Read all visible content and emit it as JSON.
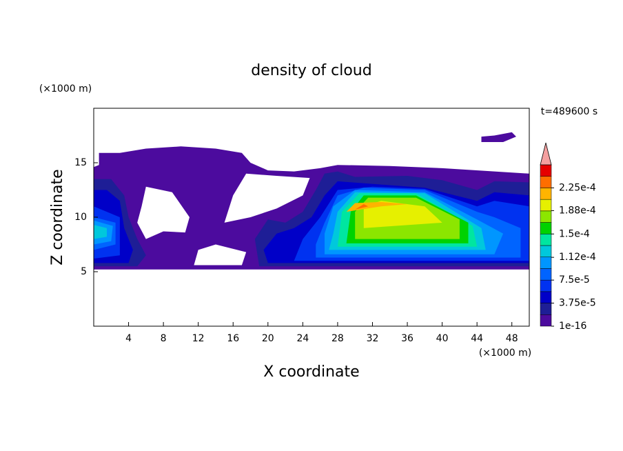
{
  "chart_data": {
    "type": "contour",
    "title": "density of cloud",
    "x_label": "X coordinate",
    "y_label": "Z coordinate",
    "x_unit": "(×1000 m)",
    "y_unit": "(×1000 m)",
    "time_label": "t=489600 s",
    "xlim": [
      0,
      50
    ],
    "ylim": [
      0,
      20
    ],
    "xticks": [
      4,
      8,
      12,
      16,
      20,
      24,
      28,
      32,
      36,
      40,
      44,
      48
    ],
    "yticks": [
      5,
      10,
      15
    ],
    "levels": [
      1e-16,
      1.875e-05,
      3.75e-05,
      5.625e-05,
      7.5e-05,
      9.375e-05,
      0.0001125,
      0.00013125,
      0.00015,
      0.00016875,
      0.0001875,
      0.00020625,
      0.000225,
      0.00024375,
      0.0002625
    ],
    "colors": [
      "#4c0b9e",
      "#1e1e96",
      "#0000c8",
      "#0032f0",
      "#0064ff",
      "#0096ff",
      "#00c8dc",
      "#00e6a0",
      "#00d200",
      "#8ce600",
      "#e6f000",
      "#ffb400",
      "#ff6e00",
      "#e60000"
    ],
    "extend_color": "#f4a0a0",
    "cbar_ticks": [
      1e-16,
      {
        "value": 3.75e-05,
        "label": "3.75e-5"
      },
      {
        "value": 7.5e-05,
        "label": "7.5e-5"
      },
      {
        "value": 0.000112,
        "label": "1.12e-4"
      },
      {
        "value": 0.00015,
        "label": "1.5e-4"
      },
      {
        "value": 0.000188,
        "label": "1.88e-4"
      },
      {
        "value": 0.000225,
        "label": "2.25e-4"
      }
    ],
    "regions": [
      {
        "value": 1e-16,
        "rings": [
          [
            [
              0,
              5.2
            ],
            [
              50,
              5.2
            ],
            [
              50,
              14
            ],
            [
              46,
              14.2
            ],
            [
              40,
              14.5
            ],
            [
              34,
              14.7
            ],
            [
              28,
              14.8
            ],
            [
              26,
              14.5
            ],
            [
              23,
              14.2
            ],
            [
              20,
              14.3
            ],
            [
              18,
              15
            ],
            [
              17,
              15.9
            ],
            [
              14,
              16.3
            ],
            [
              10,
              16.5
            ],
            [
              6,
              16.3
            ],
            [
              3,
              15.9
            ],
            [
              0.6,
              15.9
            ],
            [
              0.6,
              14.8
            ],
            [
              0,
              14.6
            ]
          ],
          [
            [
              6,
              8
            ],
            [
              8,
              8.7
            ],
            [
              10.5,
              8.6
            ],
            [
              11,
              10
            ],
            [
              9,
              12.3
            ],
            [
              6,
              12.8
            ],
            [
              5.5,
              11
            ],
            [
              5,
              9.5
            ]
          ],
          [
            [
              15,
              9.5
            ],
            [
              18,
              10
            ],
            [
              21,
              10.8
            ],
            [
              24,
              12
            ],
            [
              24.8,
              13.6
            ],
            [
              21,
              13.8
            ],
            [
              17.5,
              14
            ],
            [
              16,
              12
            ]
          ],
          [
            [
              11.5,
              5.6
            ],
            [
              17,
              5.6
            ],
            [
              17.5,
              6.8
            ],
            [
              14,
              7.5
            ],
            [
              12,
              7
            ]
          ]
        ]
      },
      {
        "value": 1e-16,
        "rings": [
          [
            [
              44.5,
              16.9
            ],
            [
              47,
              16.9
            ],
            [
              48.5,
              17.4
            ],
            [
              48,
              17.8
            ],
            [
              46,
              17.5
            ],
            [
              44.5,
              17.4
            ]
          ]
        ]
      },
      {
        "value": 1.875e-05,
        "rings": [
          [
            [
              0,
              5.5
            ],
            [
              5,
              5.5
            ],
            [
              6,
              6.5
            ],
            [
              5,
              8
            ],
            [
              4,
              10
            ],
            [
              3.5,
              12
            ],
            [
              2,
              13.5
            ],
            [
              0,
              13.5
            ]
          ]
        ]
      },
      {
        "value": 1.875e-05,
        "rings": [
          [
            [
              19,
              5.5
            ],
            [
              50,
              5.5
            ],
            [
              50,
              13.2
            ],
            [
              46,
              13.3
            ],
            [
              44,
              12.5
            ],
            [
              40,
              13.4
            ],
            [
              36,
              13.8
            ],
            [
              30,
              13.7
            ],
            [
              28,
              14.2
            ],
            [
              26.5,
              14
            ],
            [
              25.5,
              12.5
            ],
            [
              24,
              10.5
            ],
            [
              22,
              9.5
            ],
            [
              20,
              9.8
            ],
            [
              18.5,
              8
            ]
          ]
        ]
      },
      {
        "value": 3.75e-05,
        "rings": [
          [
            [
              0,
              5.8
            ],
            [
              4,
              5.8
            ],
            [
              4.5,
              7
            ],
            [
              3.5,
              9
            ],
            [
              3,
              11.5
            ],
            [
              1.5,
              12.5
            ],
            [
              0,
              12.5
            ]
          ]
        ]
      },
      {
        "value": 3.75e-05,
        "rings": [
          [
            [
              20,
              5.8
            ],
            [
              50,
              5.8
            ],
            [
              50,
              12
            ],
            [
              46,
              12.3
            ],
            [
              44,
              11.5
            ],
            [
              38,
              12.7
            ],
            [
              33,
              13
            ],
            [
              28,
              13.3
            ],
            [
              26.5,
              12
            ],
            [
              25,
              10
            ],
            [
              23,
              9
            ],
            [
              21,
              8.5
            ],
            [
              19.5,
              7
            ]
          ]
        ]
      },
      {
        "value": 5.625e-05,
        "rings": [
          [
            [
              0,
              6.2
            ],
            [
              3,
              6.5
            ],
            [
              3,
              10
            ],
            [
              0,
              11
            ]
          ]
        ]
      },
      {
        "value": 5.625e-05,
        "rings": [
          [
            [
              23,
              6
            ],
            [
              50,
              6
            ],
            [
              50,
              11
            ],
            [
              46,
              11.5
            ],
            [
              44,
              11
            ],
            [
              38,
              12.6
            ],
            [
              32,
              12.8
            ],
            [
              28,
              12.5
            ],
            [
              26,
              10
            ],
            [
              24,
              8
            ]
          ]
        ]
      },
      {
        "value": 7.5e-05,
        "rings": [
          [
            [
              0,
              7
            ],
            [
              2.5,
              7.5
            ],
            [
              2.5,
              9.5
            ],
            [
              0,
              10
            ]
          ]
        ]
      },
      {
        "value": 7.5e-05,
        "rings": [
          [
            [
              25.5,
              6.3
            ],
            [
              49,
              6.3
            ],
            [
              49,
              9
            ],
            [
              46,
              10
            ],
            [
              44,
              10.5
            ],
            [
              38,
              12.5
            ],
            [
              31,
              12.7
            ],
            [
              28,
              12
            ],
            [
              26.5,
              9.5
            ],
            [
              25.5,
              7.5
            ]
          ]
        ]
      },
      {
        "value": 9.375e-05,
        "rings": [
          [
            [
              0,
              7.5
            ],
            [
              2,
              7.8
            ],
            [
              2.2,
              9.2
            ],
            [
              0,
              9.7
            ]
          ]
        ]
      },
      {
        "value": 9.375e-05,
        "rings": [
          [
            [
              26.5,
              6.6
            ],
            [
              46,
              6.6
            ],
            [
              47,
              8.5
            ],
            [
              44,
              9.8
            ],
            [
              38,
              12.3
            ],
            [
              30,
              12.5
            ],
            [
              27.5,
              11
            ],
            [
              26.5,
              8.5
            ]
          ]
        ]
      },
      {
        "value": 0.0001125,
        "rings": [
          [
            [
              0,
              8
            ],
            [
              1.5,
              8.2
            ],
            [
              1.5,
              9
            ],
            [
              0,
              9.3
            ]
          ]
        ]
      },
      {
        "value": 0.0001125,
        "rings": [
          [
            [
              27,
              7
            ],
            [
              45,
              7
            ],
            [
              44.5,
              9
            ],
            [
              38,
              12.2
            ],
            [
              30,
              12.3
            ],
            [
              28,
              10.5
            ],
            [
              27.5,
              8.5
            ]
          ]
        ]
      },
      {
        "value": 0.00013125,
        "rings": [
          [
            [
              28,
              7.3
            ],
            [
              44,
              7.3
            ],
            [
              43.5,
              9.2
            ],
            [
              37,
              12.2
            ],
            [
              30.5,
              12.2
            ],
            [
              28.5,
              10.5
            ]
          ]
        ]
      },
      {
        "value": 0.00015,
        "rings": [
          [
            [
              29,
              7.6
            ],
            [
              43,
              7.6
            ],
            [
              43,
              9.5
            ],
            [
              37,
              12
            ],
            [
              31,
              12
            ],
            [
              29.5,
              10.5
            ]
          ]
        ]
      },
      {
        "value": 0.00016875,
        "rings": [
          [
            [
              30,
              8
            ],
            [
              42,
              8
            ],
            [
              42,
              9.8
            ],
            [
              37,
              11.8
            ],
            [
              31.5,
              11.8
            ],
            [
              30,
              10.5
            ]
          ]
        ]
      },
      {
        "value": 0.0001875,
        "rings": [
          [
            [
              31,
              9
            ],
            [
              40,
              9.5
            ],
            [
              38,
              11
            ],
            [
              33,
              11.5
            ],
            [
              31,
              11
            ]
          ]
        ]
      },
      {
        "value": 0.00020625,
        "rings": [
          [
            [
              29,
              10.5
            ],
            [
              33,
              11
            ],
            [
              36,
              11.2
            ],
            [
              33,
              11.4
            ],
            [
              30,
              11.3
            ]
          ]
        ]
      },
      {
        "value": 0.000225,
        "rings": [
          [
            [
              30,
              10.7
            ],
            [
              31.5,
              11
            ],
            [
              31,
              11.2
            ]
          ]
        ]
      }
    ]
  }
}
